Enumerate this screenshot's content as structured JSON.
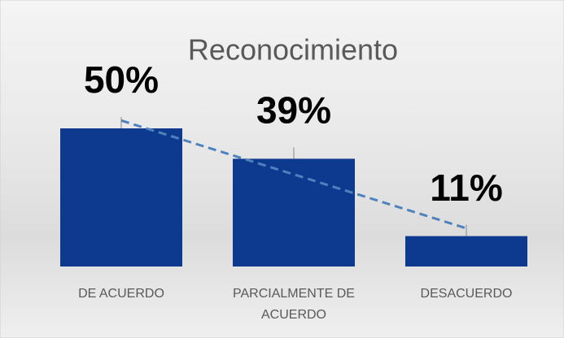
{
  "chart_data": {
    "type": "bar",
    "title": "Reconocimiento",
    "categories": [
      "DE ACUERDO",
      "PARCIALMENTE DE ACUERDO",
      "DESACUERDO"
    ],
    "values": [
      50,
      39,
      11
    ],
    "value_labels": [
      "50%",
      "39%",
      "11%"
    ],
    "color": "#0d3a8e",
    "trendline": true,
    "trendline_color": "#4f81bd"
  }
}
